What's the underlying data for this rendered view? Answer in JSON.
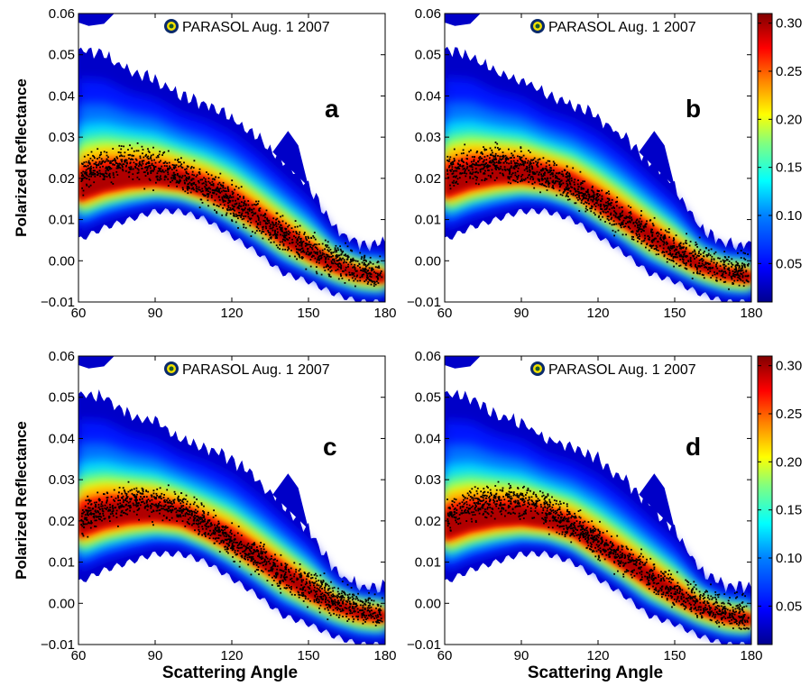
{
  "figure": {
    "xlabel": "Scattering Angle",
    "ylabel": "Polarized Reflectance"
  },
  "chart_data": [
    {
      "type": "heatmap",
      "panel_label": "a",
      "legend": "PARASOL Aug. 1 2007",
      "xlim": [
        60,
        180
      ],
      "ylim": [
        -0.01,
        0.06
      ],
      "xticks": [
        "60",
        "90",
        "120",
        "150",
        "180"
      ],
      "yticks": [
        "−0.01",
        "0.00",
        "0.01",
        "0.02",
        "0.03",
        "0.04",
        "0.05",
        "0.06"
      ],
      "density": {
        "x": [
          60,
          70,
          80,
          90,
          100,
          110,
          120,
          130,
          140,
          150,
          160,
          170,
          180
        ],
        "center": [
          0.017,
          0.019,
          0.02,
          0.02,
          0.019,
          0.017,
          0.014,
          0.01,
          0.006,
          0.002,
          -0.001,
          -0.003,
          -0.004
        ],
        "upper": [
          0.051,
          0.05,
          0.046,
          0.044,
          0.04,
          0.038,
          0.035,
          0.03,
          0.024,
          0.018,
          0.008,
          0.004,
          0.004
        ],
        "lower": [
          0.005,
          0.008,
          0.01,
          0.012,
          0.012,
          0.01,
          0.006,
          0.002,
          -0.003,
          -0.005,
          -0.008,
          -0.01,
          -0.01
        ]
      },
      "observations": {
        "x": [
          60,
          70,
          80,
          90,
          100,
          110,
          120,
          130,
          140,
          150,
          160,
          170,
          180
        ],
        "y": [
          0.021,
          0.023,
          0.024,
          0.023,
          0.021,
          0.018,
          0.014,
          0.01,
          0.006,
          0.003,
          0.0,
          -0.002,
          -0.003
        ]
      }
    },
    {
      "type": "heatmap",
      "panel_label": "b",
      "legend": "PARASOL Aug. 1 2007",
      "xlim": [
        60,
        180
      ],
      "ylim": [
        -0.01,
        0.06
      ],
      "xticks": [
        "60",
        "90",
        "120",
        "150",
        "180"
      ],
      "yticks": [
        "−0.01",
        "0.00",
        "0.01",
        "0.02",
        "0.03",
        "0.04",
        "0.05",
        "0.06"
      ],
      "density": {
        "x": [
          60,
          70,
          80,
          90,
          100,
          110,
          120,
          130,
          140,
          150,
          160,
          170,
          180
        ],
        "center": [
          0.018,
          0.02,
          0.021,
          0.021,
          0.02,
          0.018,
          0.014,
          0.01,
          0.006,
          0.002,
          -0.001,
          -0.003,
          -0.004
        ],
        "upper": [
          0.051,
          0.05,
          0.046,
          0.044,
          0.04,
          0.038,
          0.035,
          0.03,
          0.024,
          0.018,
          0.008,
          0.004,
          0.004
        ],
        "lower": [
          0.005,
          0.008,
          0.01,
          0.012,
          0.012,
          0.01,
          0.006,
          0.002,
          -0.003,
          -0.005,
          -0.008,
          -0.01,
          -0.01
        ]
      },
      "observations": {
        "x": [
          60,
          70,
          80,
          90,
          100,
          110,
          120,
          130,
          140,
          150,
          160,
          170,
          180
        ],
        "y": [
          0.021,
          0.023,
          0.024,
          0.023,
          0.021,
          0.018,
          0.014,
          0.01,
          0.006,
          0.003,
          0.0,
          -0.002,
          -0.003
        ]
      }
    },
    {
      "type": "heatmap",
      "panel_label": "c",
      "legend": "PARASOL Aug. 1 2007",
      "xlim": [
        60,
        180
      ],
      "ylim": [
        -0.01,
        0.06
      ],
      "xticks": [
        "60",
        "90",
        "120",
        "150",
        "180"
      ],
      "yticks": [
        "−0.01",
        "0.00",
        "0.01",
        "0.02",
        "0.03",
        "0.04",
        "0.05",
        "0.06"
      ],
      "density": {
        "x": [
          60,
          70,
          80,
          90,
          100,
          110,
          120,
          130,
          140,
          150,
          160,
          170,
          180
        ],
        "center": [
          0.019,
          0.021,
          0.022,
          0.022,
          0.021,
          0.018,
          0.015,
          0.011,
          0.007,
          0.003,
          0.0,
          -0.002,
          -0.003
        ],
        "upper": [
          0.051,
          0.05,
          0.046,
          0.044,
          0.04,
          0.038,
          0.035,
          0.03,
          0.024,
          0.018,
          0.008,
          0.004,
          0.004
        ],
        "lower": [
          0.005,
          0.008,
          0.01,
          0.012,
          0.012,
          0.01,
          0.006,
          0.002,
          -0.003,
          -0.005,
          -0.008,
          -0.01,
          -0.01
        ]
      },
      "observations": {
        "x": [
          60,
          70,
          80,
          90,
          100,
          110,
          120,
          130,
          140,
          150,
          160,
          170,
          180
        ],
        "y": [
          0.02,
          0.023,
          0.025,
          0.025,
          0.023,
          0.019,
          0.015,
          0.011,
          0.007,
          0.004,
          0.001,
          -0.001,
          -0.003
        ]
      }
    },
    {
      "type": "heatmap",
      "panel_label": "d",
      "legend": "PARASOL Aug. 1 2007",
      "xlim": [
        60,
        180
      ],
      "ylim": [
        -0.01,
        0.06
      ],
      "xticks": [
        "60",
        "90",
        "120",
        "150",
        "180"
      ],
      "yticks": [
        "−0.01",
        "0.00",
        "0.01",
        "0.02",
        "0.03",
        "0.04",
        "0.05",
        "0.06"
      ],
      "density": {
        "x": [
          60,
          70,
          80,
          90,
          100,
          110,
          120,
          130,
          140,
          150,
          160,
          170,
          180
        ],
        "center": [
          0.018,
          0.02,
          0.021,
          0.021,
          0.02,
          0.018,
          0.014,
          0.01,
          0.006,
          0.002,
          -0.001,
          -0.003,
          -0.004
        ],
        "upper": [
          0.051,
          0.05,
          0.046,
          0.044,
          0.04,
          0.038,
          0.035,
          0.03,
          0.024,
          0.018,
          0.008,
          0.004,
          0.004
        ],
        "lower": [
          0.005,
          0.008,
          0.01,
          0.012,
          0.012,
          0.01,
          0.006,
          0.002,
          -0.003,
          -0.005,
          -0.008,
          -0.01,
          -0.01
        ]
      },
      "observations": {
        "x": [
          60,
          70,
          80,
          90,
          100,
          110,
          120,
          130,
          140,
          150,
          160,
          170,
          180
        ],
        "y": [
          0.021,
          0.024,
          0.025,
          0.025,
          0.023,
          0.019,
          0.015,
          0.011,
          0.007,
          0.003,
          0.0,
          -0.002,
          -0.003
        ]
      }
    }
  ],
  "colorbars": [
    {
      "range": [
        0.01,
        0.31
      ],
      "ticks": [
        0.05,
        0.1,
        0.15,
        0.2,
        0.25,
        0.3
      ],
      "tick_labels": [
        "0.05",
        "0.10",
        "0.15",
        "0.20",
        "0.25",
        "0.30"
      ]
    },
    {
      "range": [
        0.01,
        0.31
      ],
      "ticks": [
        0.05,
        0.1,
        0.15,
        0.2,
        0.25,
        0.3
      ],
      "tick_labels": [
        "0.05",
        "0.10",
        "0.15",
        "0.20",
        "0.25",
        "0.30"
      ]
    }
  ],
  "colors": {
    "colormap": [
      "#00008f",
      "#0000ff",
      "#0080ff",
      "#00ffff",
      "#80ff80",
      "#ffff00",
      "#ff8000",
      "#ff0000",
      "#800000"
    ],
    "points": "#000000",
    "legend_marker_outer": "#0a2a6b",
    "legend_marker_ring": "#f0e000",
    "legend_marker_inner": "#1a5a2a"
  }
}
